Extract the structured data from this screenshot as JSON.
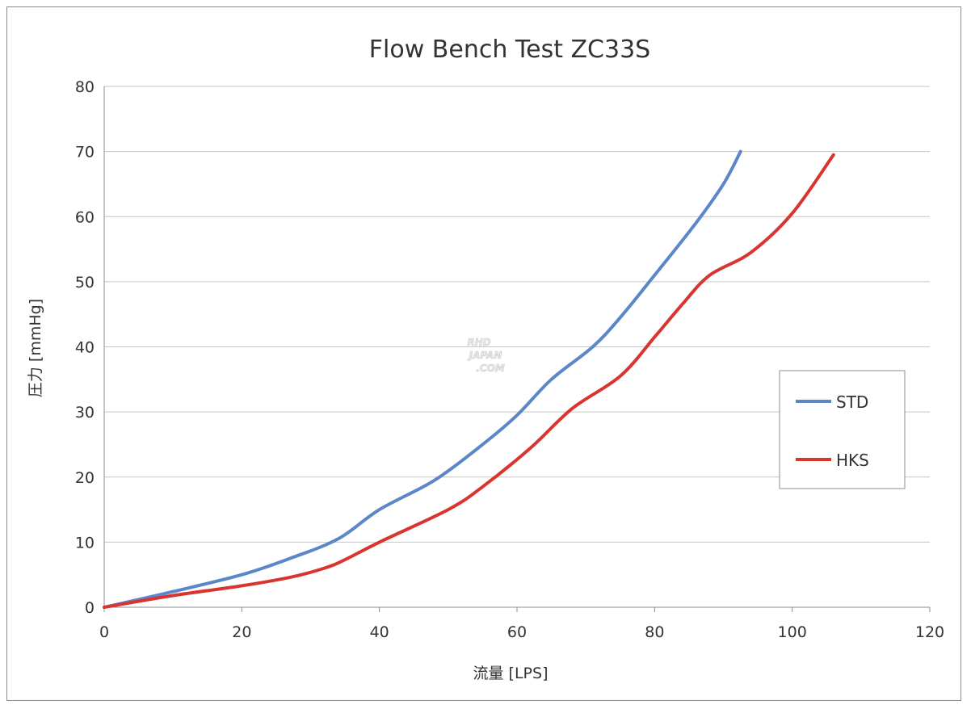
{
  "chart_data": {
    "type": "line",
    "title": "Flow Bench Test  ZC33S",
    "xlabel": "流量 [LPS]",
    "ylabel": "圧力 [mmHg]",
    "xlim": [
      0,
      120
    ],
    "ylim": [
      0,
      80
    ],
    "xticks": [
      0,
      20,
      40,
      60,
      80,
      100,
      120
    ],
    "yticks": [
      0,
      10,
      20,
      30,
      40,
      50,
      60,
      70,
      80
    ],
    "grid": "horizontal",
    "legend_position": "right",
    "series": [
      {
        "name": "STD",
        "color": "#5b86c8",
        "points": [
          [
            0,
            0
          ],
          [
            10,
            2.4
          ],
          [
            20,
            5
          ],
          [
            27,
            7.5
          ],
          [
            34,
            10.5
          ],
          [
            40,
            15
          ],
          [
            48,
            19.5
          ],
          [
            55,
            25
          ],
          [
            60,
            29.5
          ],
          [
            65,
            35
          ],
          [
            71,
            40
          ],
          [
            75,
            44.5
          ],
          [
            80,
            51
          ],
          [
            86,
            59
          ],
          [
            90,
            65
          ],
          [
            92.5,
            70
          ]
        ]
      },
      {
        "name": "HKS",
        "color": "#d93530",
        "points": [
          [
            0,
            0
          ],
          [
            10,
            1.8
          ],
          [
            20,
            3.3
          ],
          [
            27,
            4.6
          ],
          [
            32,
            6
          ],
          [
            35,
            7.3
          ],
          [
            40,
            10
          ],
          [
            50,
            15
          ],
          [
            55,
            18.5
          ],
          [
            62,
            24.5
          ],
          [
            68,
            30.5
          ],
          [
            75,
            35.5
          ],
          [
            80,
            41.5
          ],
          [
            84,
            46.5
          ],
          [
            88,
            51
          ],
          [
            94,
            54.5
          ],
          [
            100,
            60.5
          ],
          [
            106,
            69.5
          ]
        ]
      }
    ]
  },
  "watermark": {
    "line1": "RHD",
    "line2": "JAPAN",
    "line3": ".COM"
  }
}
